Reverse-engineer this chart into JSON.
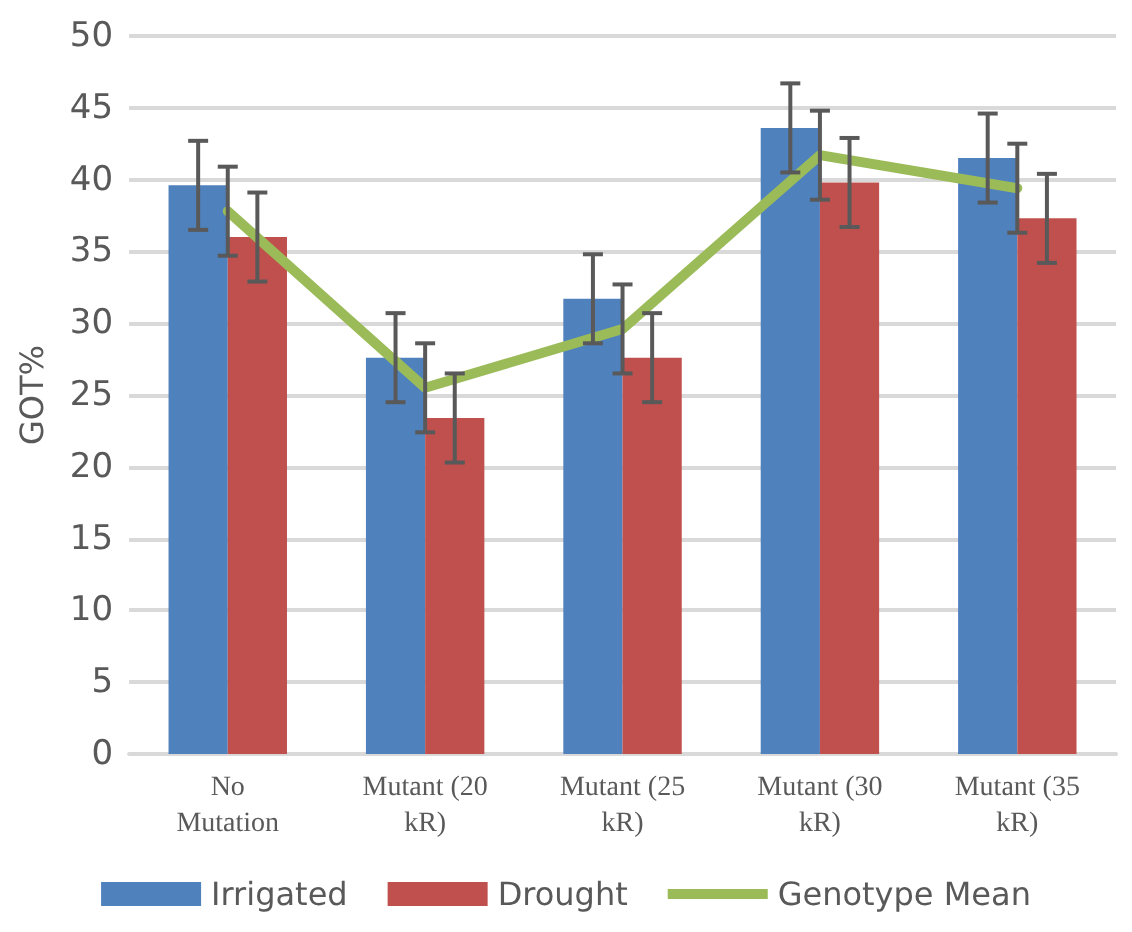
{
  "chart_data": {
    "type": "bar",
    "ylabel": "GOT%",
    "categories": [
      "No Mutation",
      "Mutant (20 kR)",
      "Mutant (25 kR)",
      "Mutant (30 kR)",
      "Mutant (35 kR)"
    ],
    "series": [
      {
        "name": "Irrigated",
        "color": "#4f81bd",
        "values": [
          39.6,
          27.6,
          31.7,
          43.6,
          41.5
        ],
        "errors": [
          3.1,
          3.1,
          3.1,
          3.1,
          3.1
        ]
      },
      {
        "name": "Drought",
        "color": "#c0504d",
        "values": [
          36.0,
          23.4,
          27.6,
          39.8,
          37.3
        ],
        "errors": [
          3.1,
          3.1,
          3.1,
          3.1,
          3.1
        ]
      },
      {
        "name": "Genotype Mean",
        "type": "line",
        "color": "#9bbb59",
        "values": [
          37.8,
          25.5,
          29.6,
          41.7,
          39.4
        ],
        "errors": [
          3.1,
          3.1,
          3.1,
          3.1,
          3.1
        ],
        "marker": "none"
      }
    ],
    "ylim": [
      0,
      50
    ],
    "yticks": [
      0,
      5,
      10,
      15,
      20,
      25,
      30,
      35,
      40,
      45,
      50
    ],
    "grid": "y",
    "legend": "bottom"
  }
}
